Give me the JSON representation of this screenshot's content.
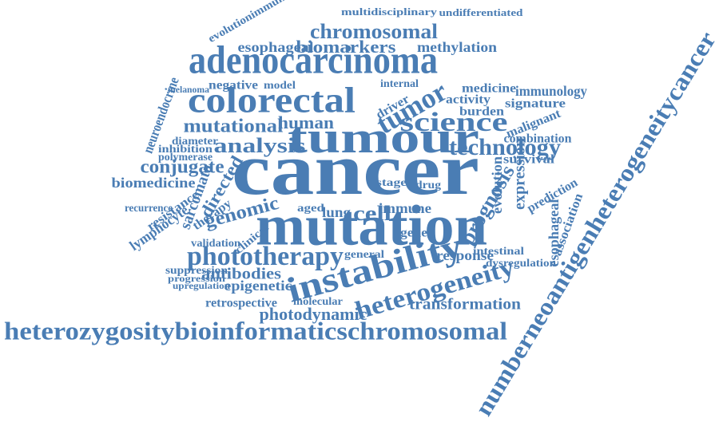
{
  "words": [
    "cancer",
    "mutation",
    "adenocarcinoma",
    "tumour",
    "colorectal",
    "instability",
    "phototherapy",
    "heterozygositybioinformaticschromosomal",
    "numberneoantigenheterogeneitycancer",
    "heterogeneity",
    "science",
    "technology",
    "tumor",
    "chromosomal",
    "biomarkers",
    "methylation",
    "esophageal",
    "mutational",
    "analysis",
    "human",
    "conjugate",
    "genomic",
    "directed",
    "sarcomata",
    "prognosis",
    "evolution",
    "expression",
    "cell",
    "immune",
    "lung",
    "aged",
    "transformation",
    "photodynamic",
    "antibodies",
    "epigenetic",
    "retrospective",
    "biomedicine",
    "polymerase",
    "inhibition",
    "diameter",
    "neuroendocrine",
    "immunology",
    "medicine",
    "burden",
    "activity",
    "signature",
    "malignant",
    "combination",
    "survival",
    "response",
    "lymphocyte",
    "resistance",
    "recurrence",
    "therapy",
    "validation",
    "clinical",
    "multidisciplinary",
    "undifferentiated",
    "evolutionimmune",
    "negative",
    "model",
    "driver",
    "internal",
    "stage",
    "drug",
    "gene",
    "general",
    "intestinal",
    "dysregulation",
    "esophageal",
    "association",
    "prediction",
    "suppression",
    "progression",
    "upregulation",
    "molecular",
    "melanoma"
  ]
}
